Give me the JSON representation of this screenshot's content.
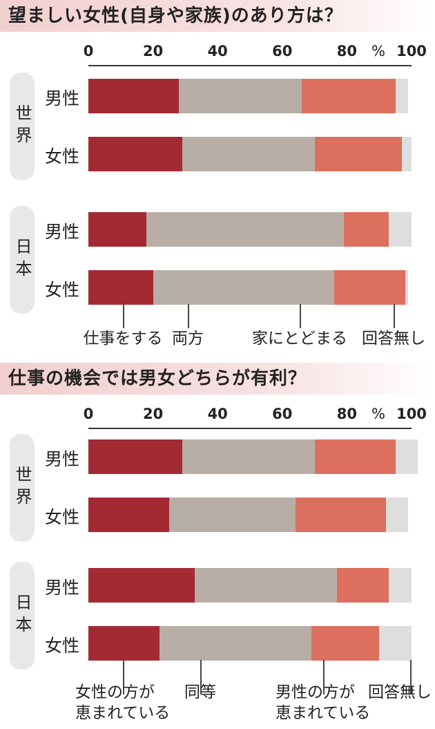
{
  "colors": {
    "work": "#a32a33",
    "both": "#b8aea6",
    "home": "#dc6f5e",
    "none": "#dedede"
  },
  "axis": {
    "ticks": [
      "0",
      "20",
      "40",
      "60",
      "80",
      "100"
    ],
    "unit": "%"
  },
  "chart_data": [
    {
      "type": "bar",
      "orientation": "horizontal",
      "stacked": true,
      "title": "望ましい女性(自身や家族)のあり方は？",
      "xlim": [
        0,
        100
      ],
      "groups": [
        "世界",
        "日本"
      ],
      "rows": [
        {
          "group": "世界",
          "label": "男性",
          "values": [
            28,
            38,
            29,
            4
          ]
        },
        {
          "group": "世界",
          "label": "女性",
          "values": [
            29,
            41,
            27,
            3
          ]
        },
        {
          "group": "日本",
          "label": "男性",
          "values": [
            18,
            61,
            14,
            7
          ]
        },
        {
          "group": "日本",
          "label": "女性",
          "values": [
            20,
            56,
            22,
            1
          ]
        }
      ],
      "legend": [
        "仕事をする",
        "両方",
        "家にとどまる",
        "回答無し"
      ]
    },
    {
      "type": "bar",
      "orientation": "horizontal",
      "stacked": true,
      "title": "仕事の機会では男女どちらが有利？",
      "xlim": [
        0,
        100
      ],
      "groups": [
        "世界",
        "日本"
      ],
      "rows": [
        {
          "group": "世界",
          "label": "男性",
          "values": [
            29,
            41,
            25,
            7
          ]
        },
        {
          "group": "世界",
          "label": "女性",
          "values": [
            25,
            39,
            28,
            7
          ]
        },
        {
          "group": "日本",
          "label": "男性",
          "values": [
            33,
            44,
            16,
            7
          ]
        },
        {
          "group": "日本",
          "label": "女性",
          "values": [
            22,
            47,
            21,
            10
          ]
        }
      ],
      "legend": [
        "女性の方が\n恵まれている",
        "同等",
        "男性の方が\n恵まれている",
        "回答無し"
      ]
    }
  ]
}
